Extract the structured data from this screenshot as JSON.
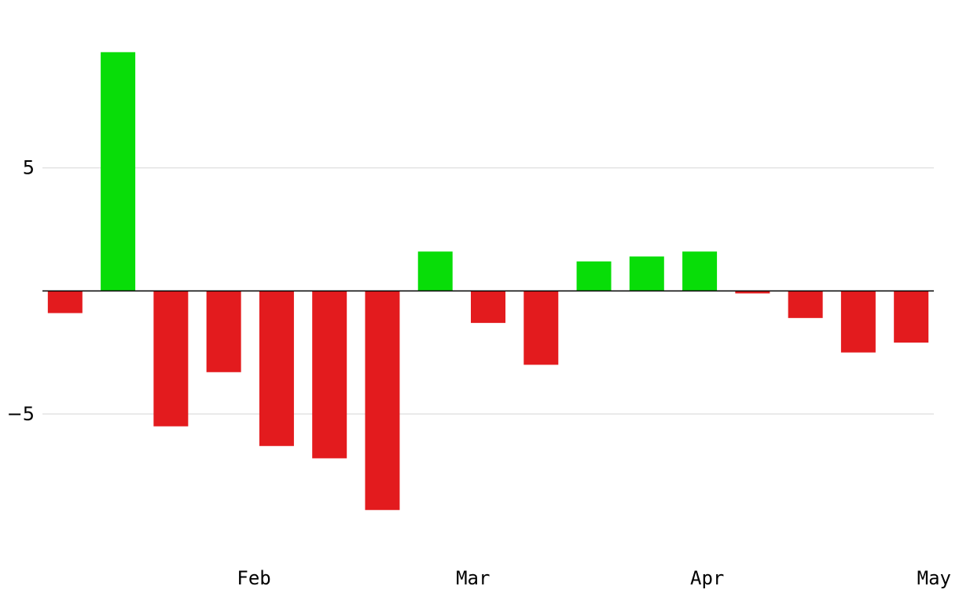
{
  "chart_data": {
    "type": "bar",
    "x": [
      "2024-01-07",
      "2024-01-14",
      "2024-01-21",
      "2024-01-28",
      "2024-02-04",
      "2024-02-11",
      "2024-02-18",
      "2024-02-25",
      "2024-03-03",
      "2024-03-10",
      "2024-03-17",
      "2024-03-24",
      "2024-03-31",
      "2024-04-07",
      "2024-04-14",
      "2024-04-21",
      "2024-04-28"
    ],
    "values": [
      -0.9,
      9.7,
      -5.5,
      -3.3,
      -6.3,
      -6.8,
      -8.9,
      1.6,
      -1.3,
      -3.0,
      1.2,
      1.4,
      1.6,
      -0.1,
      -1.1,
      -2.5,
      -2.1
    ],
    "ylim": [
      -10.2,
      11.5
    ],
    "xlim": [
      "2024-01-04",
      "2024-05-01"
    ],
    "yticks": [
      {
        "value": 5,
        "label": "5"
      },
      {
        "value": -5,
        "label": "−5"
      }
    ],
    "xticks": [
      {
        "date": "2024-02-01",
        "label": "Feb"
      },
      {
        "date": "2024-03-01",
        "label": "Mar"
      },
      {
        "date": "2024-04-01",
        "label": "Apr"
      },
      {
        "date": "2024-05-01",
        "label": "May"
      }
    ],
    "grid": true,
    "legend": "none",
    "colors": {
      "positive": "#08dd08",
      "negative": "#e31b1e",
      "grid": "#e3e3e3",
      "zero_line": "#000000"
    }
  }
}
